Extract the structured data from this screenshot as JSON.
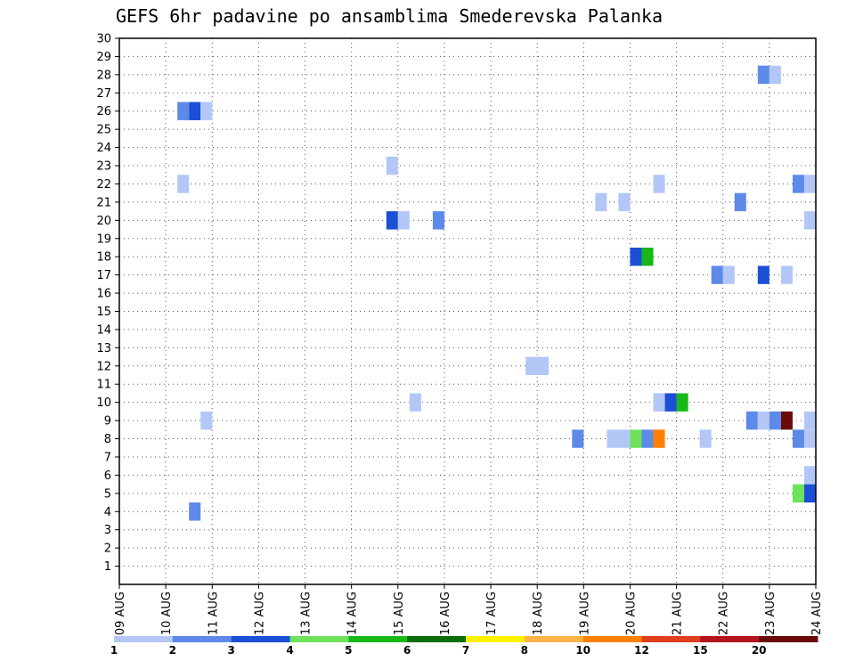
{
  "chart_data": {
    "type": "heatmap",
    "title": "GEFS 6hr padavine po ansamblima Smederevska Palanka",
    "x_labels": [
      "09 AUG",
      "10 AUG",
      "11 AUG",
      "12 AUG",
      "13 AUG",
      "14 AUG",
      "15 AUG",
      "16 AUG",
      "17 AUG",
      "18 AUG",
      "19 AUG",
      "20 AUG",
      "21 AUG",
      "22 AUG",
      "23 AUG",
      "24 AUG"
    ],
    "y_labels": [
      "1",
      "2",
      "3",
      "4",
      "5",
      "6",
      "7",
      "8",
      "9",
      "10",
      "11",
      "12",
      "13",
      "14",
      "15",
      "16",
      "17",
      "18",
      "19",
      "20",
      "21",
      "22",
      "23",
      "24",
      "25",
      "26",
      "27",
      "28",
      "29",
      "30"
    ],
    "xlim": [
      "09 AUG",
      "24 AUG"
    ],
    "ylim": [
      0,
      30
    ],
    "grid": true,
    "colorbar": {
      "labels": [
        "1",
        "2",
        "3",
        "4",
        "5",
        "6",
        "7",
        "8",
        "10",
        "12",
        "15",
        "20"
      ],
      "colors": [
        "#b3c7f7",
        "#5d8ae8",
        "#1a4fd6",
        "#6de25a",
        "#17b817",
        "#0b6e0b",
        "#fff200",
        "#ffb347",
        "#ff8000",
        "#e03c1e",
        "#b4141e",
        "#6b0a0a"
      ]
    },
    "cells": [
      {
        "x": "10 AUG 06",
        "y": 26,
        "v": 2
      },
      {
        "x": "10 AUG 12",
        "y": 26,
        "v": 3
      },
      {
        "x": "10 AUG 18",
        "y": 26,
        "v": 1
      },
      {
        "x": "10 AUG 06",
        "y": 22,
        "v": 1
      },
      {
        "x": "10 AUG 18",
        "y": 9,
        "v": 1
      },
      {
        "x": "10 AUG 12",
        "y": 4,
        "v": 2
      },
      {
        "x": "14 AUG 18",
        "y": 23,
        "v": 1
      },
      {
        "x": "14 AUG 18",
        "y": 20,
        "v": 3
      },
      {
        "x": "15 AUG 00",
        "y": 20,
        "v": 1
      },
      {
        "x": "15 AUG 18",
        "y": 20,
        "v": 2
      },
      {
        "x": "15 AUG 06",
        "y": 10,
        "v": 1
      },
      {
        "x": "17 AUG 18",
        "y": 12,
        "v": 1
      },
      {
        "x": "18 AUG 00",
        "y": 12,
        "v": 1
      },
      {
        "x": "18 AUG 18",
        "y": 8,
        "v": 2
      },
      {
        "x": "19 AUG 06",
        "y": 21,
        "v": 1
      },
      {
        "x": "19 AUG 18",
        "y": 21,
        "v": 1
      },
      {
        "x": "19 AUG 12",
        "y": 8,
        "v": 1
      },
      {
        "x": "19 AUG 18",
        "y": 8,
        "v": 1
      },
      {
        "x": "20 AUG 00",
        "y": 8,
        "v": 4
      },
      {
        "x": "20 AUG 06",
        "y": 8,
        "v": 2
      },
      {
        "x": "20 AUG 12",
        "y": 8,
        "v": 10
      },
      {
        "x": "20 AUG 00",
        "y": 18,
        "v": 3
      },
      {
        "x": "20 AUG 06",
        "y": 18,
        "v": 5
      },
      {
        "x": "20 AUG 12",
        "y": 22,
        "v": 1
      },
      {
        "x": "20 AUG 12",
        "y": 10,
        "v": 1
      },
      {
        "x": "20 AUG 18",
        "y": 10,
        "v": 3
      },
      {
        "x": "21 AUG 00",
        "y": 10,
        "v": 5
      },
      {
        "x": "21 AUG 12",
        "y": 8,
        "v": 1
      },
      {
        "x": "21 AUG 18",
        "y": 17,
        "v": 2
      },
      {
        "x": "22 AUG 00",
        "y": 17,
        "v": 1
      },
      {
        "x": "22 AUG 06",
        "y": 21,
        "v": 2
      },
      {
        "x": "22 AUG 12",
        "y": 9,
        "v": 2
      },
      {
        "x": "22 AUG 18",
        "y": 9,
        "v": 1
      },
      {
        "x": "23 AUG 00",
        "y": 9,
        "v": 2
      },
      {
        "x": "23 AUG 06",
        "y": 9,
        "v": 20
      },
      {
        "x": "22 AUG 18",
        "y": 17,
        "v": 3
      },
      {
        "x": "23 AUG 06",
        "y": 17,
        "v": 1
      },
      {
        "x": "22 AUG 18",
        "y": 28,
        "v": 2
      },
      {
        "x": "23 AUG 00",
        "y": 28,
        "v": 1
      },
      {
        "x": "23 AUG 12",
        "y": 22,
        "v": 2
      },
      {
        "x": "23 AUG 18",
        "y": 22,
        "v": 1
      },
      {
        "x": "23 AUG 18",
        "y": 20,
        "v": 1
      },
      {
        "x": "23 AUG 12",
        "y": 8,
        "v": 2
      },
      {
        "x": "23 AUG 18",
        "y": 8,
        "v": 1
      },
      {
        "x": "23 AUG 18",
        "y": 9,
        "v": 1
      },
      {
        "x": "23 AUG 18",
        "y": 6,
        "v": 1
      },
      {
        "x": "23 AUG 12",
        "y": 5,
        "v": 4
      },
      {
        "x": "23 AUG 18",
        "y": 5,
        "v": 3
      }
    ]
  }
}
